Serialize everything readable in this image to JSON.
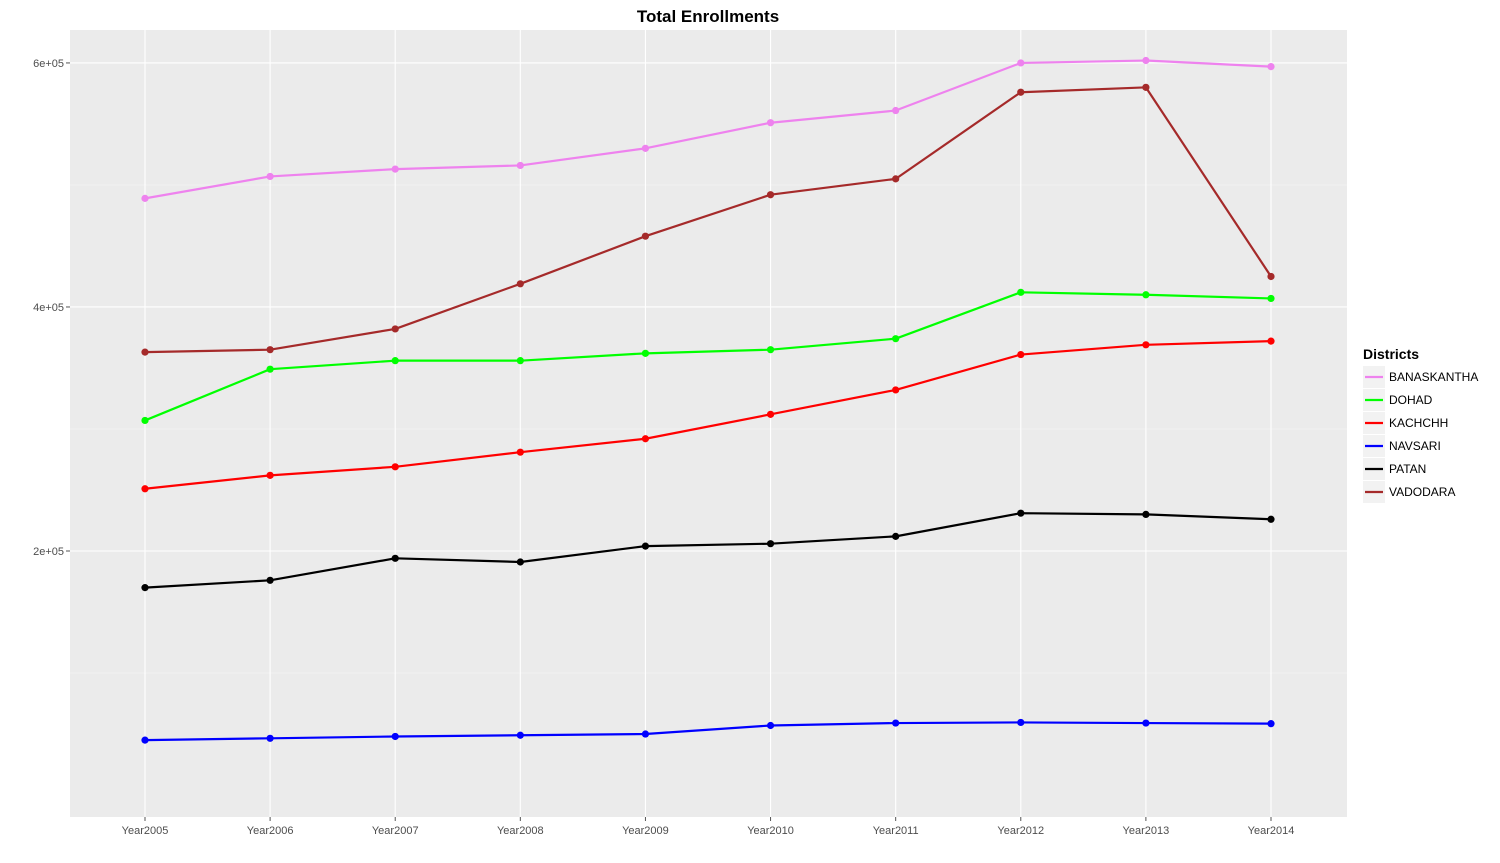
{
  "chart_data": {
    "type": "line",
    "title": "Total Enrollments",
    "xlabel": "",
    "ylabel": "",
    "categories": [
      "Year2005",
      "Year2006",
      "Year2007",
      "Year2008",
      "Year2009",
      "Year2010",
      "Year2011",
      "Year2012",
      "Year2013",
      "Year2014"
    ],
    "ylim": [
      -18000,
      627000
    ],
    "y_ticks": [
      200000,
      400000,
      600000
    ],
    "y_tick_labels": [
      "2e+05",
      "4e+05",
      "6e+05"
    ],
    "grid": true,
    "legend": {
      "title": "Districts",
      "position": "right"
    },
    "series": [
      {
        "name": "BANASKANTHA",
        "color": "#EE82EE",
        "values": [
          489000,
          507000,
          513000,
          516000,
          530000,
          551000,
          561000,
          600000,
          602000,
          597000
        ]
      },
      {
        "name": "DOHAD",
        "color": "#00FF00",
        "values": [
          307000,
          349000,
          356000,
          356000,
          362000,
          365000,
          374000,
          412000,
          410000,
          407000
        ]
      },
      {
        "name": "KACHCHH",
        "color": "#FF0000",
        "values": [
          251000,
          262000,
          269000,
          281000,
          292000,
          312000,
          332000,
          361000,
          369000,
          372000
        ]
      },
      {
        "name": "NAVSARI",
        "color": "#0000FF",
        "values": [
          45000,
          46500,
          48000,
          49000,
          50000,
          57000,
          59000,
          59500,
          59000,
          58500
        ]
      },
      {
        "name": "PATAN",
        "color": "#000000",
        "values": [
          170000,
          176000,
          194000,
          191000,
          204000,
          206000,
          212000,
          231000,
          230000,
          226000
        ]
      },
      {
        "name": "VADODARA",
        "color": "#A52A2A",
        "values": [
          363000,
          365000,
          382000,
          419000,
          458000,
          492000,
          505000,
          576000,
          580000,
          425000
        ]
      }
    ]
  }
}
